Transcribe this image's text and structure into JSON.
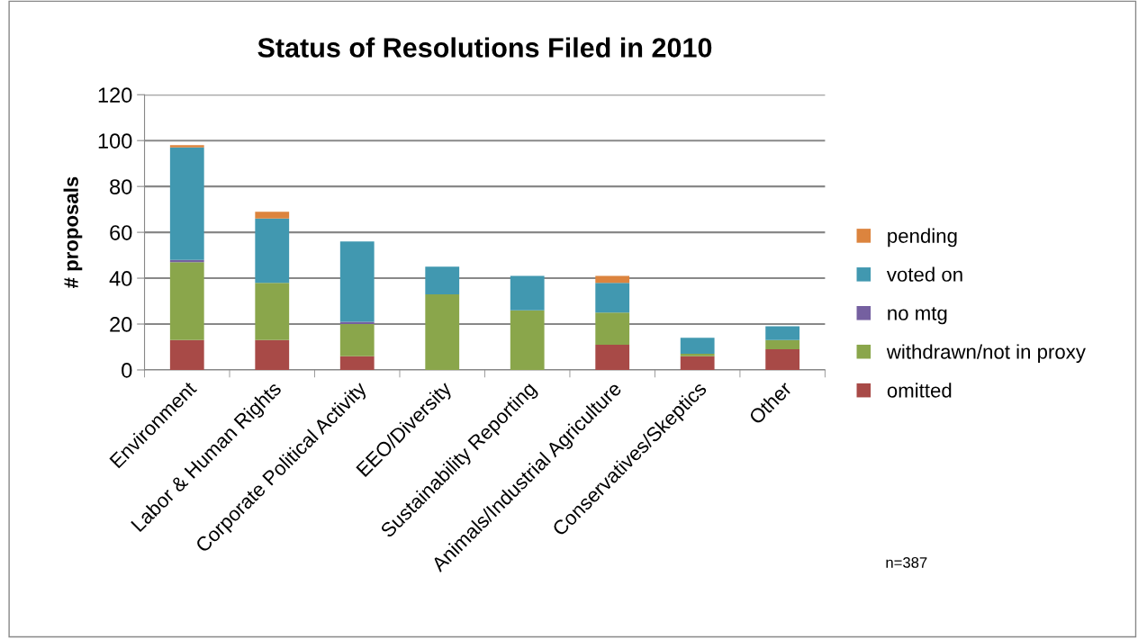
{
  "chart_data": {
    "type": "bar",
    "title": "Status of Resolutions Filed in 2010",
    "ylabel": "# proposals",
    "categories": [
      "Environment",
      "Labor & Human Rights",
      "Corporate Political Activity",
      "EEO/Diversity",
      "Sustainability Reporting",
      "Animals/Industrial Agriculture",
      "Conservatives/Skeptics",
      "Other"
    ],
    "stacked": true,
    "series": [
      {
        "name": "omitted",
        "color": "#a84a47",
        "values": [
          13,
          13,
          6,
          0,
          0,
          11,
          6,
          9
        ]
      },
      {
        "name": "withdrawn/not in proxy",
        "color": "#8aa64b",
        "values": [
          34,
          25,
          14,
          33,
          26,
          14,
          1,
          4
        ]
      },
      {
        "name": "no mtg",
        "color": "#7560a0",
        "values": [
          1,
          0,
          1,
          0,
          0,
          0,
          0,
          0
        ]
      },
      {
        "name": "voted on",
        "color": "#4198b0",
        "values": [
          49,
          28,
          35,
          12,
          15,
          13,
          7,
          6
        ]
      },
      {
        "name": "pending",
        "color": "#dc843e",
        "values": [
          1,
          3,
          0,
          0,
          0,
          3,
          0,
          0
        ]
      }
    ],
    "ylim": [
      0,
      120
    ],
    "yticks": [
      0,
      20,
      40,
      60,
      80,
      100,
      120
    ],
    "grid": "y",
    "legend": "right",
    "annotations": [
      "n=387"
    ]
  }
}
